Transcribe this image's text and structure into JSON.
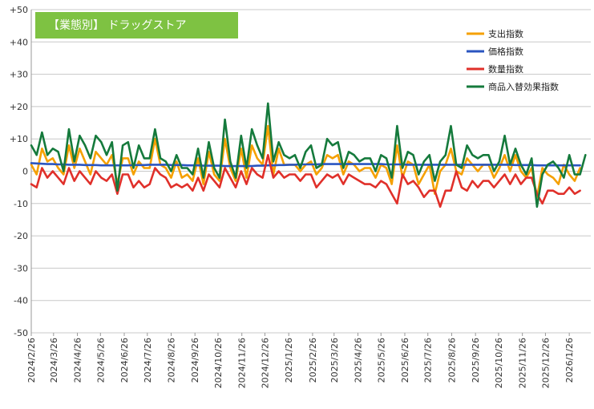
{
  "chart_data": {
    "type": "line",
    "title": "【業態別】 ドラッグストア",
    "ylim": [
      -50,
      50
    ],
    "yticks": [
      "+50",
      "+40",
      "+30",
      "+20",
      "+10",
      "0",
      "-10",
      "-20",
      "-30",
      "-40",
      "-50"
    ],
    "ytick_values": [
      50,
      40,
      30,
      20,
      10,
      0,
      -10,
      -20,
      -30,
      -40,
      -50
    ],
    "xticks": [
      "2024/2/26",
      "2024/3/26",
      "2024/4/26",
      "2024/5/26",
      "2024/6/26",
      "2024/7/26",
      "2024/8/26",
      "2024/9/26",
      "2024/10/26",
      "2024/11/26",
      "2024/12/26",
      "2025/1/26",
      "2025/2/26",
      "2025/3/26",
      "2025/4/26",
      "2025/5/26",
      "2025/6/26",
      "2025/7/26",
      "2025/8/26",
      "2025/9/26",
      "2025/10/26",
      "2025/11/26",
      "2025/12/26",
      "2026/1/26"
    ],
    "x_start": "2024/2/26",
    "x_end": "2026/2/23",
    "step_days": 7,
    "legend_position": "top-right",
    "grid": "horizontal",
    "colors": {
      "spend": "#f5a000",
      "price": "#2a55c0",
      "quantity": "#e0302a",
      "mix": "#157a3c",
      "title_bg": "#7ec242"
    },
    "series": [
      {
        "name": "支出指数",
        "key": "spend",
        "values": [
          2,
          -1,
          7,
          3,
          4,
          1,
          -1,
          8,
          1,
          7,
          3,
          -1,
          6,
          4,
          2,
          5,
          -4,
          4,
          4,
          -1,
          3,
          1,
          1,
          10,
          2,
          1,
          -2,
          3,
          -2,
          -1,
          -3,
          4,
          -4,
          6,
          -1,
          -3,
          10,
          1,
          -3,
          7,
          -2,
          8,
          4,
          2,
          14,
          -1,
          7,
          2,
          2,
          2,
          0,
          2,
          3,
          -1,
          1,
          5,
          4,
          5,
          -1,
          3,
          2,
          0,
          1,
          1,
          -2,
          2,
          1,
          -4,
          8,
          -2,
          3,
          2,
          -4,
          -1,
          2,
          -7,
          0,
          2,
          7,
          0,
          -1,
          4,
          2,
          0,
          2,
          2,
          -2,
          1,
          5,
          0,
          5,
          0,
          -2,
          1,
          -8,
          1,
          -1,
          -2,
          -4,
          2,
          -1,
          -3,
          1
        ]
      },
      {
        "name": "価格指数",
        "key": "price",
        "values": [
          2.5,
          2.4,
          2.3,
          2.2,
          2.2,
          2.1,
          2.1,
          2.0,
          2.0,
          2.0,
          1.9,
          1.9,
          1.9,
          1.8,
          1.8,
          1.8,
          1.8,
          1.8,
          1.8,
          1.9,
          1.9,
          1.9,
          2.0,
          2.0,
          2.0,
          2.0,
          1.9,
          1.9,
          1.9,
          1.8,
          1.8,
          1.8,
          1.7,
          1.7,
          1.7,
          1.7,
          1.6,
          1.6,
          1.6,
          1.6,
          1.6,
          1.6,
          1.7,
          1.7,
          1.8,
          1.8,
          1.9,
          1.9,
          2.0,
          2.0,
          2.1,
          2.1,
          2.1,
          2.1,
          2.2,
          2.2,
          2.2,
          2.2,
          2.2,
          2.2,
          2.2,
          2.2,
          2.2,
          2.2,
          2.2,
          2.2,
          2.1,
          2.1,
          2.1,
          2.1,
          2.0,
          2.0,
          2.0,
          2.0,
          2.0,
          2.0,
          2.0,
          2.0,
          2.0,
          2.0,
          2.0,
          2.0,
          2.0,
          2.0,
          2.0,
          2.0,
          2.0,
          2.0,
          2.0,
          2.0,
          1.9,
          1.9,
          1.9,
          1.9,
          1.8,
          1.8,
          1.8,
          1.8,
          1.8,
          1.8,
          1.8,
          1.8,
          1.8
        ]
      },
      {
        "name": "数量指数",
        "key": "quantity",
        "values": [
          -4,
          -5,
          1,
          -2,
          0,
          -2,
          -4,
          1,
          -3,
          0,
          -2,
          -4,
          0,
          -2,
          -3,
          -1,
          -7,
          -1,
          -1,
          -5,
          -3,
          -5,
          -4,
          1,
          -1,
          -2,
          -5,
          -4,
          -5,
          -4,
          -6,
          -2,
          -6,
          -1,
          -3,
          -5,
          1,
          -2,
          -5,
          0,
          -4,
          1,
          -1,
          -2,
          5,
          -2,
          0,
          -2,
          -1,
          -1,
          -3,
          -1,
          -1,
          -5,
          -3,
          -1,
          -2,
          -1,
          -4,
          -1,
          -2,
          -3,
          -4,
          -4,
          -5,
          -3,
          -4,
          -7,
          -10,
          -1,
          -4,
          -3,
          -5,
          -8,
          -6,
          -6,
          -11,
          -6,
          -6,
          0,
          -5,
          -6,
          -3,
          -5,
          -3,
          -3,
          -5,
          -3,
          -1,
          -4,
          -1,
          -4,
          -2,
          -2,
          -7,
          -10,
          -6,
          -6,
          -7,
          -7,
          -5,
          -7,
          -6
        ]
      },
      {
        "name": "商品入替効果指数",
        "key": "mix",
        "values": [
          8,
          5,
          12,
          5,
          7,
          6,
          0,
          13,
          3,
          11,
          8,
          4,
          11,
          9,
          5,
          9,
          -6,
          8,
          9,
          1,
          8,
          4,
          4,
          13,
          4,
          3,
          0,
          5,
          1,
          1,
          -1,
          7,
          -2,
          9,
          1,
          -2,
          16,
          3,
          -2,
          11,
          1,
          13,
          8,
          4,
          21,
          3,
          9,
          5,
          4,
          5,
          1,
          6,
          8,
          1,
          2,
          10,
          8,
          9,
          1,
          6,
          5,
          3,
          4,
          4,
          0,
          5,
          4,
          -2,
          14,
          1,
          6,
          5,
          -1,
          3,
          5,
          -3,
          3,
          5,
          14,
          2,
          1,
          8,
          5,
          4,
          5,
          5,
          0,
          3,
          11,
          2,
          7,
          2,
          -1,
          4,
          -11,
          -1,
          2,
          3,
          1,
          -2,
          5,
          -1,
          -1,
          5
        ]
      }
    ]
  }
}
